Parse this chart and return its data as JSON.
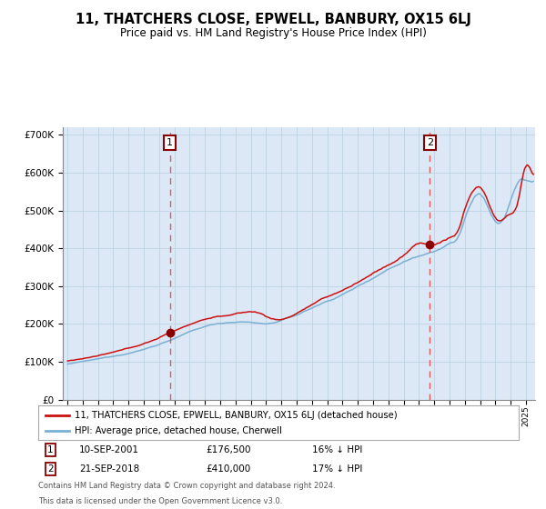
{
  "title": "11, THATCHERS CLOSE, EPWELL, BANBURY, OX15 6LJ",
  "subtitle": "Price paid vs. HM Land Registry's House Price Index (HPI)",
  "legend_line1": "11, THATCHERS CLOSE, EPWELL, BANBURY, OX15 6LJ (detached house)",
  "legend_line2": "HPI: Average price, detached house, Cherwell",
  "annotation1_date": "10-SEP-2001",
  "annotation1_price": "£176,500",
  "annotation1_hpi": "16% ↓ HPI",
  "annotation1_year": 2001.71,
  "annotation1_value": 176500,
  "annotation2_date": "21-SEP-2018",
  "annotation2_price": "£410,000",
  "annotation2_hpi": "17% ↓ HPI",
  "annotation2_year": 2018.71,
  "annotation2_value": 410000,
  "footer1": "Contains HM Land Registry data © Crown copyright and database right 2024.",
  "footer2": "This data is licensed under the Open Government Licence v3.0.",
  "hpi_color": "#7ab0d4",
  "price_color": "#cc1111",
  "dot_color": "#8b0000",
  "bg_color": "#dce8f5",
  "plot_bg": "#ffffff",
  "grid_color": "#b8cfe0",
  "dashed_color": "#dd4444",
  "ylim": [
    0,
    720000
  ],
  "xlim_start": 1994.7,
  "xlim_end": 2025.6
}
